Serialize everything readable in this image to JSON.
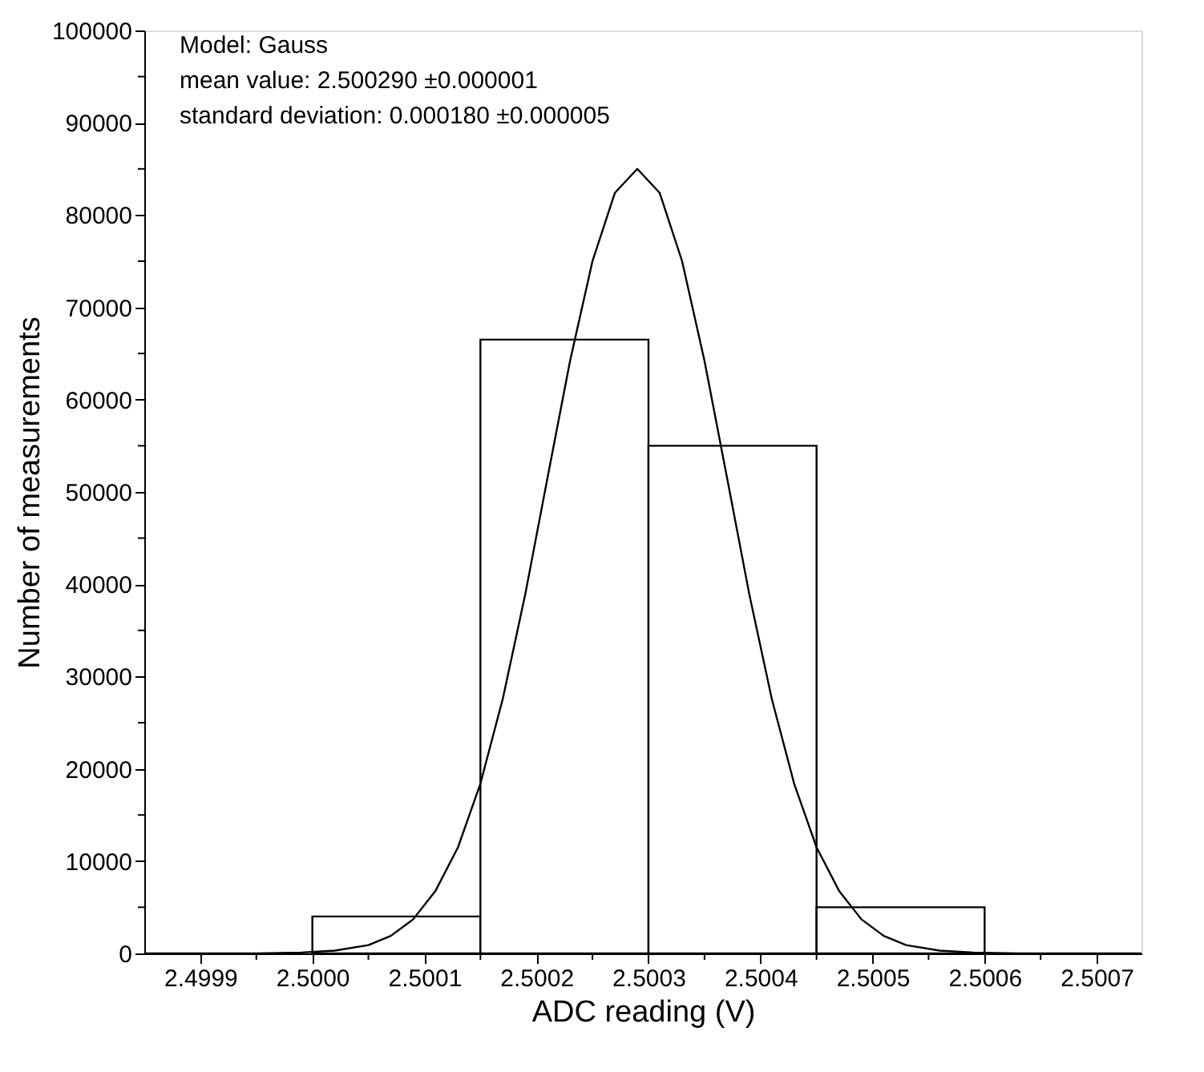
{
  "chart_data": {
    "type": "histogram",
    "xlabel": "ADC reading (V)",
    "ylabel": "Number of measurements",
    "annotations": [
      "Model: Gauss",
      "mean value:            2.500290  ±0.000001",
      "standard deviation: 0.000180  ±0.000005"
    ],
    "bins": [
      2.5,
      2.50015,
      2.5003,
      2.50045,
      2.5006
    ],
    "values": [
      4000,
      66500,
      55000,
      5000
    ],
    "series": [
      {
        "type": "line",
        "color": "#000000",
        "x": [
          2.49985,
          2.49995,
          2.49999,
          2.50002,
          2.50005,
          2.50007,
          2.50009,
          2.50011,
          2.50013,
          2.50015,
          2.50017,
          2.50019,
          2.50021,
          2.50023,
          2.50025,
          2.50027,
          2.50029,
          2.50031,
          2.50033,
          2.50035,
          2.50037,
          2.50039,
          2.50041,
          2.50043,
          2.50045,
          2.50047,
          2.50049,
          2.50051,
          2.50053,
          2.50056,
          2.50059,
          2.50063,
          2.50074
        ],
        "values": [
          0,
          0,
          100,
          300,
          900,
          1900,
          3700,
          6800,
          11500,
          18400,
          27600,
          38900,
          51600,
          64200,
          75000,
          82400,
          85000,
          82400,
          75000,
          64200,
          51600,
          38900,
          27600,
          18400,
          11500,
          6800,
          3700,
          1900,
          900,
          300,
          100,
          0,
          0
        ]
      }
    ],
    "xlim": [
      2.49985,
      2.50074
    ],
    "xticks": [
      {
        "value": 2.4999,
        "label": "2.4999"
      },
      {
        "value": 2.49995,
        "label": null
      },
      {
        "value": 2.5,
        "label": "2.5000"
      },
      {
        "value": 2.50005,
        "label": null
      },
      {
        "value": 2.5001,
        "label": "2.5001"
      },
      {
        "value": 2.50015,
        "label": null
      },
      {
        "value": 2.5002,
        "label": "2.5002"
      },
      {
        "value": 2.50025,
        "label": null
      },
      {
        "value": 2.5003,
        "label": "2.5003"
      },
      {
        "value": 2.50035,
        "label": null
      },
      {
        "value": 2.5004,
        "label": "2.5004"
      },
      {
        "value": 2.50045,
        "label": null
      },
      {
        "value": 2.5005,
        "label": "2.5005"
      },
      {
        "value": 2.50055,
        "label": null
      },
      {
        "value": 2.5006,
        "label": "2.5006"
      },
      {
        "value": 2.50065,
        "label": null
      },
      {
        "value": 2.5007,
        "label": "2.5007"
      }
    ],
    "ylim": [
      0,
      100000
    ],
    "yticks": [
      0,
      {
        "value": 5000,
        "label": null
      },
      10000,
      {
        "value": 15000,
        "label": null
      },
      20000,
      {
        "value": 25000,
        "label": null
      },
      30000,
      {
        "value": 35000,
        "label": null
      },
      40000,
      {
        "value": 45000,
        "label": null
      },
      50000,
      {
        "value": 55000,
        "label": null
      },
      60000,
      {
        "value": 65000,
        "label": null
      },
      70000,
      {
        "value": 75000,
        "label": null
      },
      80000,
      {
        "value": 85000,
        "label": null
      },
      90000,
      {
        "value": 95000,
        "label": null
      },
      100000
    ],
    "grid": false
  }
}
